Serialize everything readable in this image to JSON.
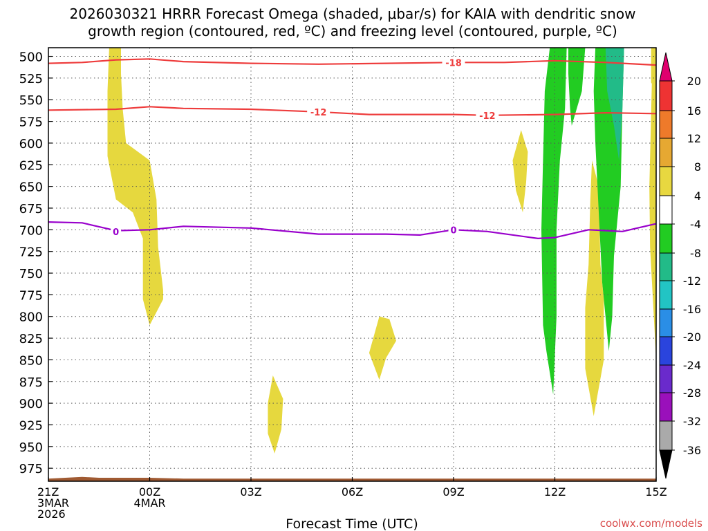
{
  "chart_data": {
    "type": "time-height",
    "title_line1": "2026030321 HRRR Forecast Omega (shaded, μbar/s) for KAIA with dendritic snow",
    "title_line2": "growth region (contoured, red, ºC) and freezing level (contoured, purple, ºC)",
    "xlabel": "Forecast Time (UTC)",
    "credit": "coolwx.com/models",
    "x_range_hours": [
      0,
      18
    ],
    "y_range_mb": [
      490,
      990
    ],
    "y_ticks": [
      "500",
      "525",
      "550",
      "575",
      "600",
      "625",
      "650",
      "675",
      "700",
      "725",
      "750",
      "775",
      "800",
      "825",
      "850",
      "875",
      "900",
      "925",
      "950",
      "975"
    ],
    "y_tick_values": [
      500,
      525,
      550,
      575,
      600,
      625,
      650,
      675,
      700,
      725,
      750,
      775,
      800,
      825,
      850,
      875,
      900,
      925,
      950,
      975
    ],
    "x_ticks": [
      {
        "hour": 0,
        "lines": [
          "21Z",
          "3MAR",
          "2026"
        ]
      },
      {
        "hour": 3,
        "lines": [
          "00Z",
          "4MAR"
        ]
      },
      {
        "hour": 6,
        "lines": [
          "03Z"
        ]
      },
      {
        "hour": 9,
        "lines": [
          "06Z"
        ]
      },
      {
        "hour": 12,
        "lines": [
          "09Z"
        ]
      },
      {
        "hour": 15,
        "lines": [
          "12Z"
        ]
      },
      {
        "hour": 18,
        "lines": [
          "15Z"
        ]
      }
    ],
    "colorbar": {
      "labels": [
        "20",
        "16",
        "12",
        "8",
        "4",
        "-4",
        "-8",
        "-12",
        "-16",
        "-20",
        "-24",
        "-28",
        "-32",
        "-36"
      ],
      "top_arrow_color": "#e0006e",
      "bottom_arrow_color": "#000000",
      "segment_colors": [
        "#ee3333",
        "#ee7a2a",
        "#e6a832",
        "#e8d840",
        "#ffffff",
        "#22cc22",
        "#22bb88",
        "#22c4c4",
        "#2a8ee6",
        "#2a44dd",
        "#6a2acc",
        "#9a10bb",
        "#aaaaaa"
      ]
    },
    "contours": [
      {
        "name": "-18",
        "color": "#ee3c3c",
        "label": "-18",
        "label_positions": [
          [
            12,
            507
          ]
        ],
        "points": [
          [
            0,
            508
          ],
          [
            1,
            507
          ],
          [
            2,
            504
          ],
          [
            3,
            503
          ],
          [
            4,
            506
          ],
          [
            6,
            508
          ],
          [
            8,
            509
          ],
          [
            10,
            508
          ],
          [
            12,
            507
          ],
          [
            13.5,
            507
          ],
          [
            15,
            505
          ],
          [
            16.5,
            507
          ],
          [
            18,
            510
          ]
        ]
      },
      {
        "name": "-12",
        "color": "#ee3c3c",
        "label": "-12",
        "label_positions": [
          [
            8,
            564
          ],
          [
            13,
            568
          ]
        ],
        "points": [
          [
            0,
            562
          ],
          [
            2,
            561
          ],
          [
            3,
            558
          ],
          [
            4,
            560
          ],
          [
            6,
            561
          ],
          [
            8,
            564
          ],
          [
            9.5,
            567
          ],
          [
            12,
            567
          ],
          [
            13,
            568
          ],
          [
            15,
            567
          ],
          [
            16.5,
            565
          ],
          [
            18,
            566
          ]
        ]
      },
      {
        "name": "0",
        "color": "#9900cc",
        "label": "0",
        "label_positions": [
          [
            2,
            702
          ],
          [
            12,
            700
          ]
        ],
        "points": [
          [
            0,
            691
          ],
          [
            1,
            692
          ],
          [
            2,
            701
          ],
          [
            3,
            700
          ],
          [
            4,
            696
          ],
          [
            6,
            698
          ],
          [
            8,
            705
          ],
          [
            10,
            705
          ],
          [
            11,
            706
          ],
          [
            12,
            700
          ],
          [
            13,
            702
          ],
          [
            14.5,
            710
          ],
          [
            15,
            709
          ],
          [
            16,
            700
          ],
          [
            17,
            702
          ],
          [
            18,
            693
          ]
        ]
      }
    ],
    "omega_regions": [
      {
        "color": "#e6d83e",
        "value": "4 to 8",
        "points": [
          [
            1.8,
            490
          ],
          [
            2.15,
            490
          ],
          [
            2.15,
            520
          ],
          [
            2.2,
            560
          ],
          [
            2.3,
            600
          ],
          [
            3.0,
            620
          ],
          [
            3.2,
            665
          ],
          [
            3.25,
            720
          ],
          [
            3.4,
            770
          ],
          [
            3.4,
            780
          ],
          [
            3.0,
            810
          ],
          [
            2.8,
            780
          ],
          [
            2.8,
            710
          ],
          [
            2.5,
            680
          ],
          [
            2.0,
            665
          ],
          [
            1.75,
            615
          ],
          [
            1.75,
            540
          ]
        ]
      },
      {
        "color": "#e6d83e",
        "value": "4 to 8",
        "points": [
          [
            6.65,
            868
          ],
          [
            6.95,
            895
          ],
          [
            6.9,
            930
          ],
          [
            6.7,
            958
          ],
          [
            6.5,
            935
          ],
          [
            6.5,
            900
          ]
        ]
      },
      {
        "color": "#e6d83e",
        "value": "4 to 8",
        "points": [
          [
            9.8,
            800
          ],
          [
            10.1,
            803
          ],
          [
            10.3,
            828
          ],
          [
            10.0,
            848
          ],
          [
            9.8,
            873
          ],
          [
            9.5,
            842
          ]
        ]
      },
      {
        "color": "#e6d83e",
        "value": "4 to 8",
        "points": [
          [
            14.0,
            585
          ],
          [
            14.2,
            610
          ],
          [
            14.15,
            645
          ],
          [
            14.05,
            680
          ],
          [
            13.85,
            655
          ],
          [
            13.75,
            620
          ]
        ]
      },
      {
        "color": "#e6d83e",
        "value": "4 to 8",
        "points": [
          [
            16.1,
            620
          ],
          [
            16.3,
            650
          ],
          [
            16.35,
            740
          ],
          [
            16.45,
            780
          ],
          [
            16.45,
            850
          ],
          [
            16.15,
            915
          ],
          [
            15.9,
            860
          ],
          [
            15.9,
            790
          ],
          [
            16.0,
            740
          ],
          [
            16.05,
            665
          ]
        ]
      },
      {
        "color": "#e6d83e",
        "value": "4 to 8",
        "points": [
          [
            17.88,
            520
          ],
          [
            18,
            520
          ],
          [
            18,
            850
          ],
          [
            17.82,
            720
          ],
          [
            17.8,
            650
          ]
        ]
      },
      {
        "color": "#22cc22",
        "value": "-4 to -8",
        "points": [
          [
            14.85,
            490
          ],
          [
            15.35,
            490
          ],
          [
            15.3,
            560
          ],
          [
            15.15,
            620
          ],
          [
            15.05,
            700
          ],
          [
            15.05,
            800
          ],
          [
            14.95,
            890
          ],
          [
            14.75,
            840
          ],
          [
            14.65,
            810
          ],
          [
            14.6,
            700
          ],
          [
            14.65,
            620
          ],
          [
            14.7,
            540
          ]
        ]
      },
      {
        "color": "#22cc22",
        "value": "-4 to -8",
        "points": [
          [
            15.4,
            490
          ],
          [
            15.9,
            490
          ],
          [
            15.8,
            540
          ],
          [
            15.5,
            580
          ],
          [
            15.45,
            560
          ],
          [
            15.4,
            520
          ]
        ]
      },
      {
        "color": "#22cc22",
        "value": "-4 to -8",
        "points": [
          [
            16.2,
            490
          ],
          [
            17.05,
            490
          ],
          [
            17.0,
            560
          ],
          [
            16.95,
            650
          ],
          [
            16.75,
            730
          ],
          [
            16.7,
            800
          ],
          [
            16.6,
            840
          ],
          [
            16.4,
            760
          ],
          [
            16.3,
            680
          ],
          [
            16.2,
            600
          ],
          [
            16.15,
            540
          ]
        ]
      },
      {
        "color": "#22bb88",
        "value": "-8 to -12",
        "points": [
          [
            16.5,
            490
          ],
          [
            17.05,
            490
          ],
          [
            17.0,
            560
          ],
          [
            16.9,
            620
          ],
          [
            16.75,
            580
          ],
          [
            16.55,
            540
          ]
        ]
      },
      {
        "color": "#e6d83e",
        "value": "4 to 8",
        "points": [
          [
            17.85,
            490
          ],
          [
            18,
            490
          ],
          [
            18,
            540
          ],
          [
            17.85,
            530
          ]
        ]
      }
    ],
    "terrain": {
      "color": "#a05a32",
      "points": [
        [
          0,
          990
        ],
        [
          0,
          987
        ],
        [
          0.5,
          986
        ],
        [
          1.0,
          985
        ],
        [
          1.5,
          986
        ],
        [
          2.0,
          986
        ],
        [
          3.0,
          986
        ],
        [
          4.0,
          987
        ],
        [
          18,
          987
        ],
        [
          18,
          990
        ]
      ]
    }
  }
}
